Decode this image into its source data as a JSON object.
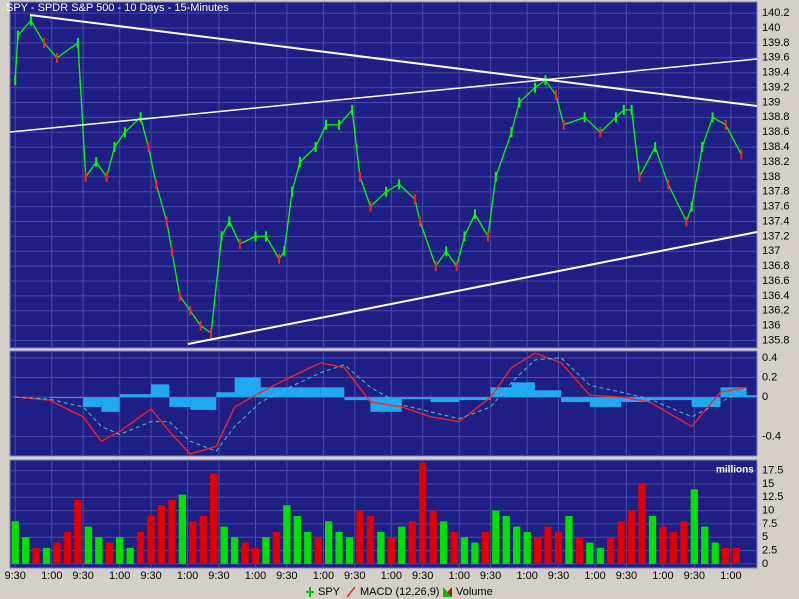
{
  "chart_data": [
    {
      "type": "line",
      "title": "SPY - SPDR S&P 500 - 10 Days - 15-Minutes",
      "xlim": [
        -2,
        284
      ],
      "ylim": [
        135.7,
        140.35
      ],
      "yticks": [
        140.2,
        140,
        139.8,
        139.6,
        139.4,
        139.2,
        139,
        138.8,
        138.6,
        138.4,
        138.2,
        138,
        137.8,
        137.6,
        137.4,
        137.2,
        137,
        136.8,
        136.6,
        136.4,
        136.2,
        136,
        135.8
      ],
      "grid": true,
      "x": [
        0,
        1,
        6,
        11,
        16,
        24,
        27,
        31,
        35,
        38,
        42,
        48,
        51,
        54,
        58,
        60,
        63,
        67,
        71,
        75,
        79,
        82,
        86,
        92,
        96,
        101,
        103,
        106,
        109,
        115,
        119,
        124,
        129,
        132,
        136,
        142,
        147,
        153,
        155,
        161,
        165,
        169,
        172,
        176,
        181,
        184,
        190,
        193,
        199,
        203,
        207,
        210,
        218,
        224,
        230,
        233,
        236,
        239,
        245,
        250,
        257,
        259,
        263,
        267,
        272,
        278
      ],
      "series": [
        {
          "name": "SPY",
          "color": "#00ff00",
          "down_color": "#ff2020",
          "values": [
            139.3,
            139.9,
            140.1,
            139.8,
            139.6,
            139.8,
            138.0,
            138.2,
            138.0,
            138.4,
            138.6,
            138.8,
            138.4,
            137.9,
            137.4,
            137.0,
            136.4,
            136.2,
            136.0,
            135.9,
            137.2,
            137.4,
            137.1,
            137.2,
            137.2,
            136.9,
            137.0,
            137.8,
            138.2,
            138.4,
            138.7,
            138.7,
            138.9,
            138.0,
            137.6,
            137.8,
            137.9,
            137.7,
            137.4,
            136.8,
            137.0,
            136.8,
            137.2,
            137.5,
            137.2,
            138.0,
            138.6,
            139.0,
            139.2,
            139.3,
            139.1,
            138.7,
            138.8,
            138.6,
            138.8,
            138.9,
            138.9,
            138.0,
            138.4,
            137.9,
            137.4,
            137.6,
            138.4,
            138.8,
            138.7,
            138.3
          ]
        }
      ]
    },
    {
      "type": "line",
      "xlim": [
        -2,
        284
      ],
      "ylim": [
        -0.6,
        0.47
      ],
      "yticks": [
        0.4,
        0.2,
        0,
        -0.4
      ],
      "grid": true,
      "x": [
        0,
        13,
        26,
        33,
        40,
        52,
        59,
        67,
        77,
        84,
        94,
        105,
        117,
        126,
        136,
        148,
        159,
        170,
        182,
        190,
        199,
        209,
        220,
        232,
        243,
        259,
        270,
        280
      ],
      "series": [
        {
          "kind": "histogram",
          "color": "#20a8f0",
          "values": [
            0,
            -0.01,
            -0.1,
            -0.15,
            0.03,
            0.13,
            -0.1,
            -0.13,
            0.05,
            0.2,
            0.1,
            0.1,
            0.1,
            -0.03,
            -0.15,
            -0.02,
            -0.05,
            -0.03,
            0.1,
            0.15,
            0.07,
            -0.05,
            -0.1,
            -0.05,
            -0.03,
            -0.1,
            0.1,
            0.02
          ]
        },
        {
          "name": "MACD (12,26,9)",
          "color": "#ff2020",
          "values": [
            0,
            -0.03,
            -0.2,
            -0.45,
            -0.35,
            -0.12,
            -0.35,
            -0.58,
            -0.5,
            -0.1,
            0.05,
            0.2,
            0.35,
            0.3,
            -0.05,
            -0.1,
            -0.2,
            -0.25,
            0,
            0.3,
            0.45,
            0.35,
            0.02,
            0,
            -0.05,
            -0.3,
            0.05,
            0.1
          ]
        },
        {
          "color": "#40c8c8",
          "dash": true,
          "values": [
            0,
            -0.02,
            -0.1,
            -0.3,
            -0.38,
            -0.25,
            -0.25,
            -0.45,
            -0.55,
            -0.3,
            -0.05,
            0.1,
            0.25,
            0.33,
            0.1,
            -0.08,
            -0.15,
            -0.22,
            -0.1,
            0.15,
            0.38,
            0.4,
            0.12,
            0.05,
            -0.02,
            -0.2,
            -0.05,
            0.08
          ]
        }
      ]
    },
    {
      "type": "bar",
      "y_label": "millions",
      "xlim": [
        -2,
        284
      ],
      "ylim": [
        -0.4,
        19.5
      ],
      "yticks": [
        0,
        2.5,
        5,
        7.5,
        10,
        12.5,
        15,
        17.5
      ],
      "grid": true,
      "xticks": [
        {
          "value": 0,
          "label": "9:30"
        },
        {
          "value": 14,
          "label": "1:00"
        },
        {
          "value": 26,
          "label": "9:30"
        },
        {
          "value": 40,
          "label": "1:00"
        },
        {
          "value": 52,
          "label": "9:30"
        },
        {
          "value": 66,
          "label": "1:00"
        },
        {
          "value": 78,
          "label": "9:30"
        },
        {
          "value": 92,
          "label": "1:00"
        },
        {
          "value": 104,
          "label": "9:30"
        },
        {
          "value": 118,
          "label": "1:00"
        },
        {
          "value": 130,
          "label": "9:30"
        },
        {
          "value": 144,
          "label": "1:00"
        },
        {
          "value": 156,
          "label": "9:30"
        },
        {
          "value": 170,
          "label": "1:00"
        },
        {
          "value": 182,
          "label": "9:30"
        },
        {
          "value": 196,
          "label": "1:00"
        },
        {
          "value": 208,
          "label": "9:30"
        },
        {
          "value": 222,
          "label": "1:00"
        },
        {
          "value": 234,
          "label": "9:30"
        },
        {
          "value": 248,
          "label": "1:00"
        },
        {
          "value": 260,
          "label": "9:30"
        },
        {
          "value": 274,
          "label": "1:00"
        }
      ],
      "x": [
        0,
        4,
        8,
        12,
        16,
        20,
        24,
        28,
        32,
        36,
        40,
        44,
        48,
        52,
        56,
        60,
        64,
        68,
        72,
        76,
        80,
        84,
        88,
        92,
        96,
        100,
        104,
        108,
        112,
        116,
        120,
        124,
        128,
        132,
        136,
        140,
        144,
        148,
        152,
        156,
        160,
        164,
        168,
        172,
        176,
        180,
        184,
        188,
        192,
        196,
        200,
        204,
        208,
        212,
        216,
        220,
        224,
        228,
        232,
        236,
        240,
        244,
        248,
        252,
        256,
        260,
        264,
        268,
        272,
        276
      ],
      "series": [
        {
          "name": "Volume",
          "values": [
            8,
            5,
            3,
            3,
            4,
            6,
            12,
            7,
            5,
            4,
            5,
            3,
            6,
            9,
            11,
            12,
            13,
            8,
            9,
            17,
            7,
            5,
            4,
            3,
            5,
            6,
            11,
            9,
            6,
            5,
            8,
            6,
            5,
            10,
            9,
            6,
            5,
            7,
            8,
            19,
            10,
            8,
            6,
            5,
            4,
            6,
            10,
            9,
            7,
            6,
            5,
            7,
            6,
            9,
            5,
            4,
            3,
            5,
            8,
            10,
            15,
            9,
            7,
            6,
            8,
            14,
            7,
            4,
            3,
            3
          ],
          "colors": [
            "#00e000",
            "#00e000",
            "#e00000",
            "#00e000",
            "#e00000",
            "#e00000",
            "#e00000",
            "#00e000",
            "#00e000",
            "#e00000",
            "#00e000",
            "#00e000",
            "#e00000",
            "#e00000",
            "#e00000",
            "#e00000",
            "#00e000",
            "#e00000",
            "#e00000",
            "#e00000",
            "#00e000",
            "#00e000",
            "#e00000",
            "#e00000",
            "#00e000",
            "#e00000",
            "#00e000",
            "#00e000",
            "#00e000",
            "#e00000",
            "#00e000",
            "#00e000",
            "#00e000",
            "#e00000",
            "#e00000",
            "#00e000",
            "#e00000",
            "#00e000",
            "#e00000",
            "#e00000",
            "#e00000",
            "#00e000",
            "#e00000",
            "#00e000",
            "#00e000",
            "#e00000",
            "#00e000",
            "#00e000",
            "#00e000",
            "#00e000",
            "#e00000",
            "#e00000",
            "#e00000",
            "#00e000",
            "#e00000",
            "#00e000",
            "#00e000",
            "#e00000",
            "#e00000",
            "#e00000",
            "#e00000",
            "#00e000",
            "#e00000",
            "#e00000",
            "#e00000",
            "#00e000",
            "#00e000",
            "#00e000",
            "#e00000",
            "#e00000"
          ]
        }
      ]
    }
  ]
}
